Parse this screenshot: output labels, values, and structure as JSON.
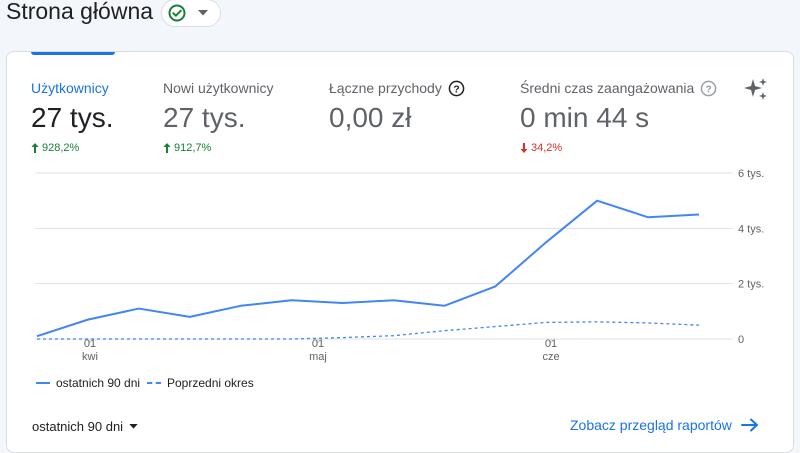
{
  "header": {
    "title": "Strona główna",
    "status_icon": "check-circle-icon",
    "dropdown_icon": "caret-down-icon"
  },
  "metrics": [
    {
      "label": "Użytkownicy",
      "value": "27 tys.",
      "change": "928,2%",
      "direction": "up",
      "active": true
    },
    {
      "label": "Nowi użytkownicy",
      "value": "27 tys.",
      "change": "912,7%",
      "direction": "up",
      "active": false
    },
    {
      "label": "Łączne przychody",
      "value": "0,00 zł",
      "change": "",
      "direction": "",
      "active": false,
      "help_icon": true
    },
    {
      "label": "Średni czas zaangażowania",
      "value": "0 min 44 s",
      "change": "34,2%",
      "direction": "down",
      "active": false,
      "help_icon": true
    }
  ],
  "insights_icon": "sparkle-icon",
  "colors": {
    "accent": "#1a73e8",
    "series": "#4285f4",
    "up": "#188038",
    "down": "#d93025"
  },
  "chart_data": {
    "type": "line",
    "x_tick_labels": [
      {
        "day": "01",
        "month": "kwi"
      },
      {
        "day": "01",
        "month": "maj"
      },
      {
        "day": "01",
        "month": "cze"
      }
    ],
    "y_tick_labels": [
      "6 tys.",
      "4 tys.",
      "2 tys.",
      "0"
    ],
    "ylim": [
      0,
      6000
    ],
    "grid": true,
    "legend_position": "bottom-left",
    "series": [
      {
        "name": "ostatnich 90 dni",
        "style": "solid",
        "values": [
          100,
          700,
          1100,
          800,
          1200,
          1400,
          1300,
          1400,
          1200,
          1900,
          3500,
          5000,
          4400,
          4500
        ]
      },
      {
        "name": "Poprzedni okres",
        "style": "dashed",
        "values": [
          0,
          0,
          0,
          0,
          0,
          0,
          50,
          120,
          300,
          450,
          600,
          620,
          580,
          500
        ]
      }
    ]
  },
  "footer": {
    "range_label": "ostatnich 90 dni",
    "report_link": "Zobacz przegląd raportów"
  }
}
